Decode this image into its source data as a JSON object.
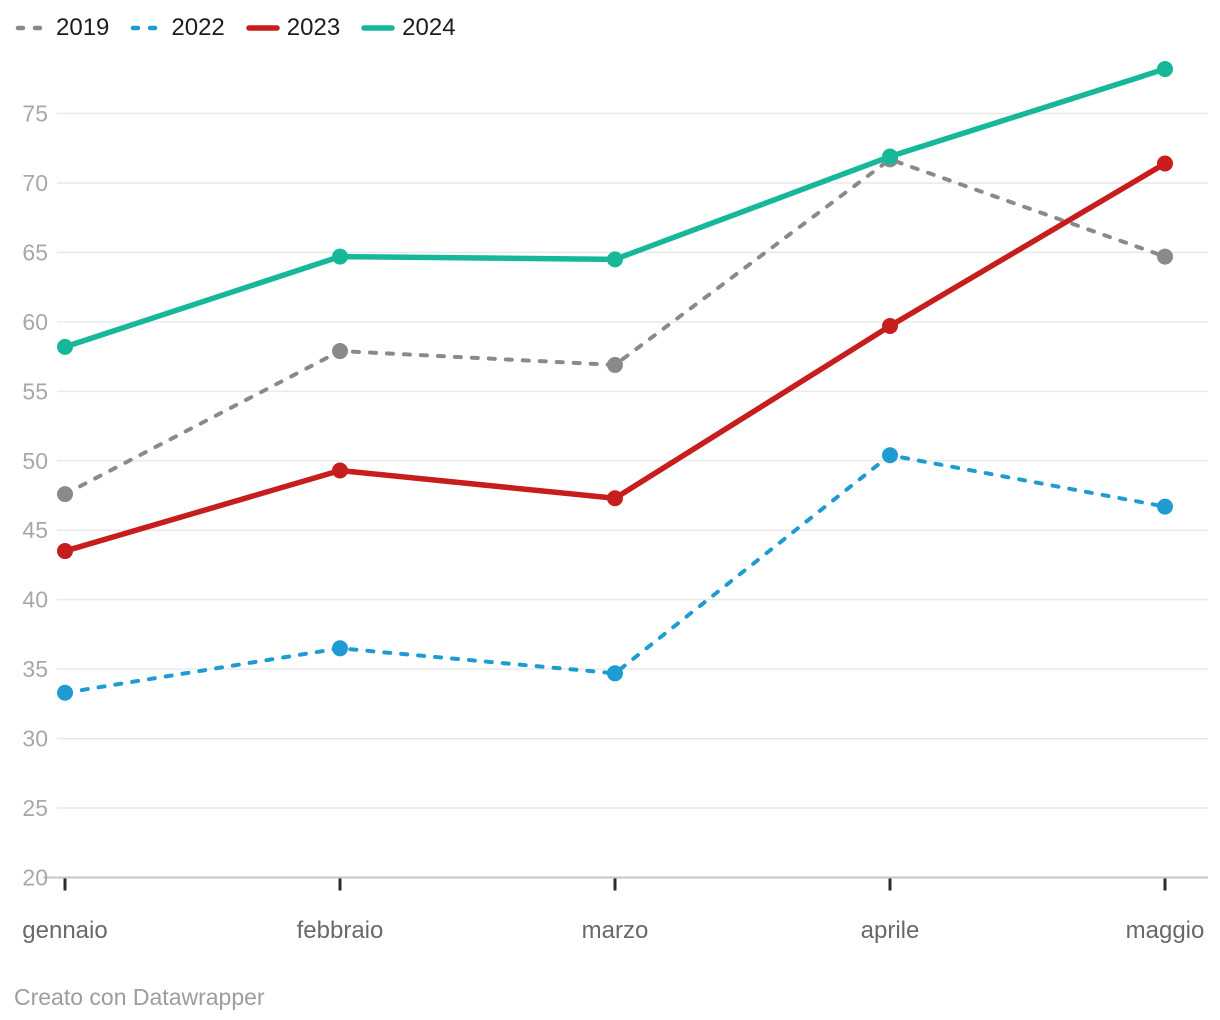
{
  "footer": {
    "credit": "Creato con Datawrapper"
  },
  "style": {
    "grid_color": "#e9e9e9",
    "baseline_color": "#c6c6c6",
    "tick_color": "#2b2b2b",
    "y_label_color": "#a8a8a8",
    "x_label_color": "#696969",
    "legend_text_color": "#1d1d1d",
    "background": "#ffffff"
  },
  "chart_data": {
    "type": "line",
    "title": "",
    "xlabel": "",
    "ylabel": "",
    "categories": [
      "gennaio",
      "febbraio",
      "marzo",
      "aprile",
      "maggio"
    ],
    "series": [
      {
        "name": "2019",
        "color": "#8a8a8a",
        "style": "dashed",
        "values": [
          47.6,
          57.9,
          56.9,
          71.7,
          64.7
        ]
      },
      {
        "name": "2022",
        "color": "#1e9bd2",
        "style": "dashed",
        "values": [
          33.3,
          36.5,
          34.7,
          50.4,
          46.7
        ]
      },
      {
        "name": "2023",
        "color": "#c71e1d",
        "style": "solid",
        "values": [
          43.5,
          49.3,
          47.3,
          59.7,
          71.4
        ]
      },
      {
        "name": "2024",
        "color": "#17b89a",
        "style": "solid",
        "values": [
          58.2,
          64.7,
          64.5,
          71.9,
          78.2
        ]
      }
    ],
    "ylim": [
      20,
      78.5
    ],
    "yticks": [
      20,
      25,
      30,
      35,
      40,
      45,
      50,
      55,
      60,
      65,
      70,
      75
    ],
    "grid": "horizontal",
    "legend_position": "top-left",
    "attribution": "Creato con Datawrapper"
  }
}
